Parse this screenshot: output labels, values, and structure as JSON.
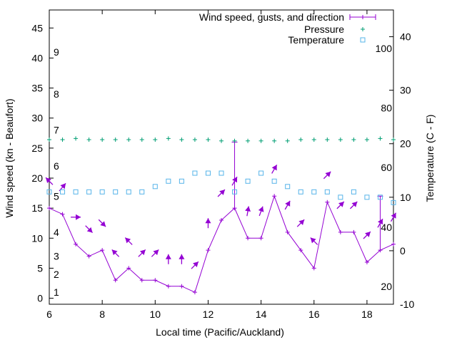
{
  "chart_data": {
    "type": "line",
    "xlabel": "Local time (Pacific/Auckland)",
    "ylabel_left": "Wind speed (kn - Beaufort)",
    "ylabel_right": "Temperature (C - F)",
    "xlim": [
      6,
      19
    ],
    "ylim_left": [
      -1,
      48
    ],
    "ylim_right": [
      -10,
      45
    ],
    "x_ticks": [
      "6",
      "8",
      "10",
      "12",
      "14",
      "16",
      "18"
    ],
    "y_left_ticks": [
      "0",
      "5",
      "10",
      "15",
      "20",
      "25",
      "30",
      "35",
      "40",
      "45"
    ],
    "y_right_ticks": [
      "-10",
      "0",
      "10",
      "20",
      "30",
      "40"
    ],
    "beaufort_labels": [
      {
        "label": "1",
        "kn": 1
      },
      {
        "label": "2",
        "kn": 4
      },
      {
        "label": "3",
        "kn": 7
      },
      {
        "label": "4",
        "kn": 11
      },
      {
        "label": "5",
        "kn": 17
      },
      {
        "label": "6",
        "kn": 22
      },
      {
        "label": "7",
        "kn": 28
      },
      {
        "label": "8",
        "kn": 34
      },
      {
        "label": "9",
        "kn": 41
      }
    ],
    "fahrenheit_labels": [
      {
        "label": "20",
        "c": -6.7
      },
      {
        "label": "40",
        "c": 4.4
      },
      {
        "label": "60",
        "c": 15.6
      },
      {
        "label": "80",
        "c": 26.7
      },
      {
        "label": "100",
        "c": 37.8
      }
    ],
    "legend": {
      "position": "top-right",
      "entries": [
        "Wind speed, gusts, and direction",
        "Pressure",
        "Temperature"
      ]
    },
    "colors": {
      "wind": "#9400d3",
      "pressure": "#009e73",
      "temperature": "#56b4e9"
    },
    "series": [
      {
        "name": "Wind speed, gusts, and direction",
        "x": [
          6,
          6.5,
          7,
          7.5,
          8,
          8.5,
          9,
          9.5,
          10,
          10.5,
          11,
          11.5,
          12,
          12.5,
          13,
          13.5,
          14,
          14.5,
          15,
          15.5,
          16,
          16.5,
          17,
          17.5,
          18,
          18.5,
          19
        ],
        "values": [
          15,
          14,
          9,
          7,
          8,
          3,
          5,
          3,
          3,
          2,
          2,
          1,
          8,
          13,
          15,
          10,
          10,
          17,
          11,
          8,
          5,
          16,
          11,
          11,
          6,
          8,
          9
        ],
        "gusts": [
          15,
          14,
          9,
          7,
          8,
          3,
          5,
          3,
          3,
          2,
          2,
          1,
          8,
          13,
          26,
          10,
          10,
          17,
          11,
          8,
          5,
          16,
          11,
          11,
          6,
          17,
          9
        ],
        "direction_deg": [
          135,
          50,
          0,
          315,
          315,
          135,
          135,
          45,
          45,
          90,
          90,
          45,
          90,
          45,
          60,
          80,
          70,
          60,
          60,
          45,
          135,
          45,
          45,
          45,
          45,
          60,
          60
        ]
      },
      {
        "name": "Pressure",
        "x": [
          6,
          6.5,
          7,
          7.5,
          8,
          8.5,
          9,
          9.5,
          10,
          10.5,
          11,
          11.5,
          12,
          12.5,
          13,
          13.5,
          14,
          14.5,
          15,
          15.5,
          16,
          16.5,
          17,
          17.5,
          18,
          18.5,
          19
        ],
        "values": [
          26.4,
          26.4,
          26.6,
          26.4,
          26.4,
          26.4,
          26.4,
          26.4,
          26.4,
          26.6,
          26.4,
          26.4,
          26.4,
          26.2,
          26.2,
          26.2,
          26.2,
          26.2,
          26.2,
          26.4,
          26.4,
          26.4,
          26.4,
          26.4,
          26.4,
          26.6,
          26.4
        ]
      },
      {
        "name": "Temperature",
        "x": [
          6,
          6.5,
          7,
          7.5,
          8,
          8.5,
          9,
          9.5,
          10,
          10.5,
          11,
          11.5,
          12,
          12.5,
          13,
          13.5,
          14,
          14.5,
          15,
          15.5,
          16,
          16.5,
          17,
          17.5,
          18,
          18.5,
          19
        ],
        "values": [
          11,
          11,
          11,
          11,
          11,
          11,
          11,
          11,
          12,
          13,
          13,
          14.5,
          14.5,
          14.5,
          11,
          13,
          14.5,
          13,
          12,
          11,
          11,
          11,
          10,
          11,
          10,
          10,
          9
        ]
      }
    ]
  }
}
